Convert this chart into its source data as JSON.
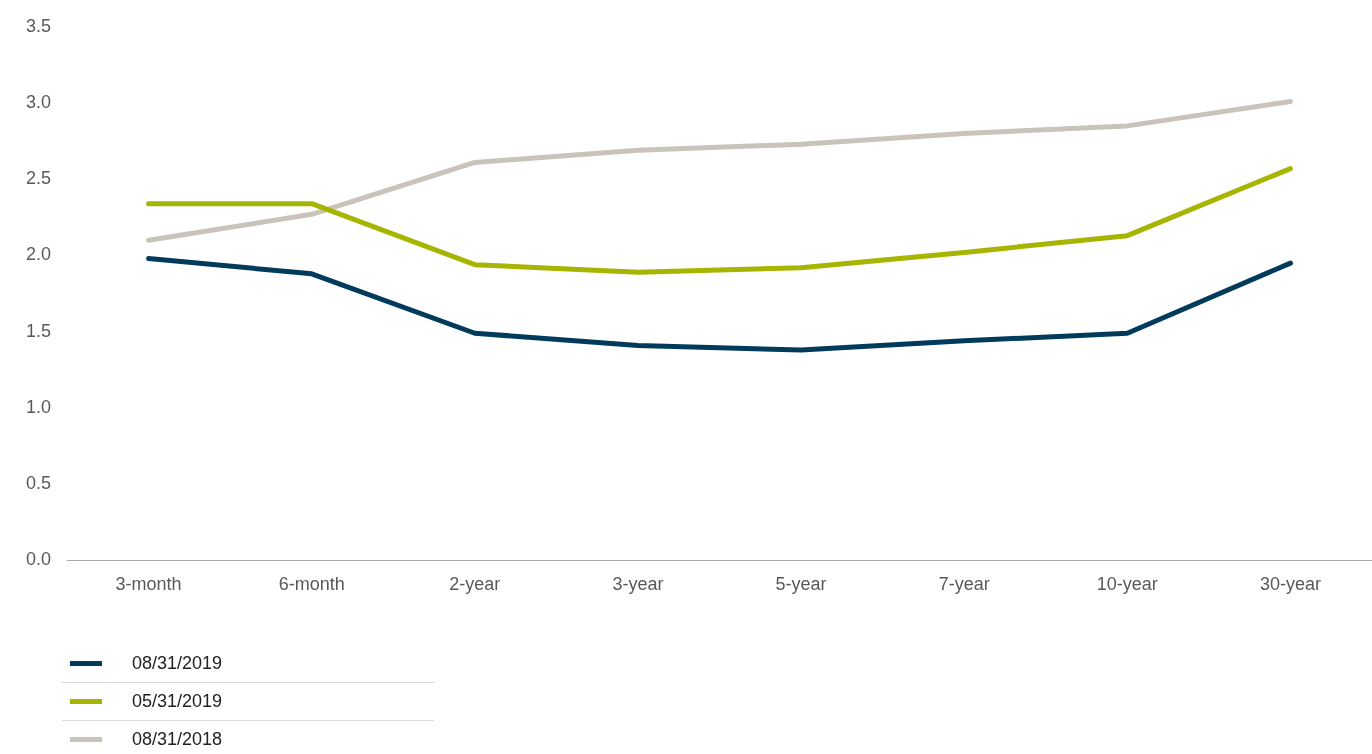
{
  "chart_data": {
    "type": "line",
    "categories": [
      "3-month",
      "6-month",
      "2-year",
      "3-year",
      "5-year",
      "7-year",
      "10-year",
      "30-year"
    ],
    "series": [
      {
        "name": "08/31/2019",
        "color": "#003b5c",
        "values": [
          1.98,
          1.88,
          1.49,
          1.41,
          1.38,
          1.44,
          1.49,
          1.95
        ]
      },
      {
        "name": "05/31/2019",
        "color": "#a5b500",
        "values": [
          2.34,
          2.34,
          1.94,
          1.89,
          1.92,
          2.02,
          2.13,
          2.57
        ]
      },
      {
        "name": "08/31/2018",
        "color": "#c8c4bc",
        "values": [
          2.1,
          2.27,
          2.61,
          2.69,
          2.73,
          2.8,
          2.85,
          3.01
        ]
      }
    ],
    "ylim": [
      0,
      3.5
    ],
    "yticks": [
      {
        "value": 0,
        "label": "0.0"
      },
      0.5,
      {
        "value": 1,
        "label": "1.0"
      },
      1.5,
      {
        "value": 2,
        "label": "2.0"
      },
      2.5,
      {
        "value": 3,
        "label": "3.0"
      },
      3.5
    ],
    "grid": false,
    "legend": "bottom left",
    "marker": "none",
    "line_style": "solid"
  }
}
